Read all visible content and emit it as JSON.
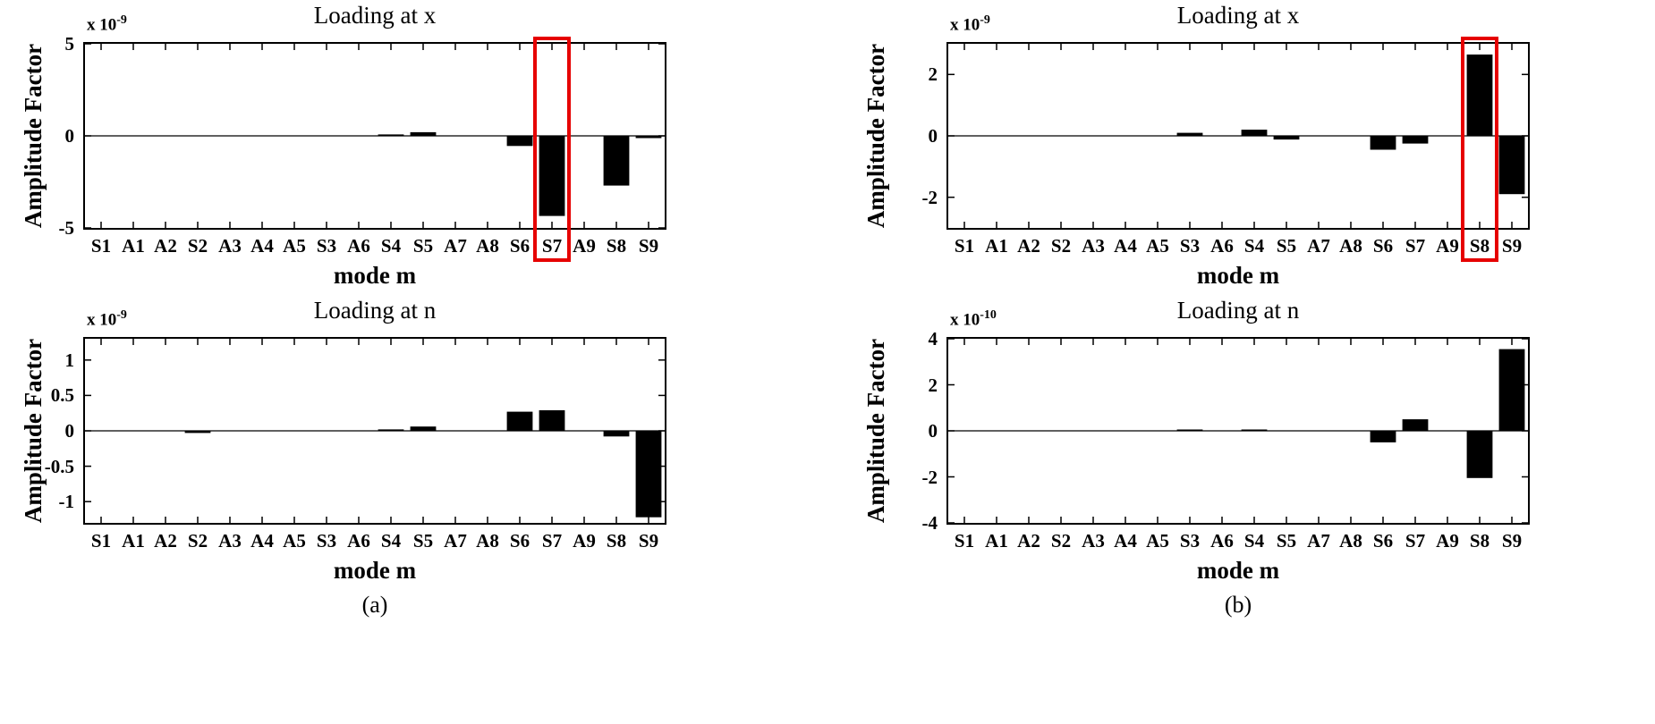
{
  "panel_labels": {
    "a": "(a)",
    "b": "(b)"
  },
  "categories": [
    "S1",
    "A1",
    "A2",
    "S2",
    "A3",
    "A4",
    "A5",
    "S3",
    "A6",
    "S4",
    "S5",
    "A7",
    "A8",
    "S6",
    "S7",
    "A9",
    "S8",
    "S9"
  ],
  "chart_data": [
    {
      "type": "bar",
      "title": "Loading at x",
      "xlabel": "mode m",
      "ylabel": "Amplitude Factor",
      "scale_base": "x 10",
      "scale_exp": "-9",
      "ylim": [
        -5,
        5
      ],
      "yticks": [
        -5,
        0,
        5
      ],
      "values": [
        0,
        0,
        0,
        0,
        0,
        0,
        0,
        0,
        0,
        0.08,
        0.2,
        0,
        0,
        -0.55,
        -4.35,
        0,
        -2.7,
        -0.12
      ],
      "highlight": "S7",
      "highlight_color": "#e60000",
      "bar_color": "#000000",
      "legend": null,
      "grid": false
    },
    {
      "type": "bar",
      "title": "Loading at x",
      "xlabel": "mode m",
      "ylabel": "Amplitude Factor",
      "scale_base": "x 10",
      "scale_exp": "-9",
      "ylim": [
        -3,
        3
      ],
      "yticks": [
        -2,
        0,
        2
      ],
      "values": [
        0,
        0,
        0,
        0,
        0,
        0,
        0,
        0.1,
        0,
        0.2,
        -0.12,
        0,
        0,
        -0.45,
        -0.25,
        0,
        2.65,
        -1.9
      ],
      "highlight": "S8",
      "highlight_color": "#e60000",
      "bar_color": "#000000",
      "legend": null,
      "grid": false
    },
    {
      "type": "bar",
      "title": "Loading at n",
      "xlabel": "mode m",
      "ylabel": "Amplitude Factor",
      "scale_base": "x 10",
      "scale_exp": "-9",
      "ylim": [
        -1.3,
        1.3
      ],
      "yticks": [
        -1,
        -0.5,
        0,
        0.5,
        1
      ],
      "values": [
        0,
        0,
        0,
        -0.03,
        0,
        0,
        0,
        0,
        0,
        0.02,
        0.06,
        0,
        0,
        0.27,
        0.29,
        0,
        -0.08,
        -1.22
      ],
      "highlight": null,
      "highlight_color": "#e60000",
      "bar_color": "#000000",
      "legend": null,
      "grid": false
    },
    {
      "type": "bar",
      "title": "Loading at n",
      "xlabel": "mode m",
      "ylabel": "Amplitude Factor",
      "scale_base": "x 10",
      "scale_exp": "-10",
      "ylim": [
        -4,
        4
      ],
      "yticks": [
        -4,
        -2,
        0,
        2,
        4
      ],
      "values": [
        0,
        0,
        0,
        0,
        0,
        0,
        0,
        0.06,
        0,
        0.06,
        0,
        0,
        0,
        -0.5,
        0.5,
        0,
        -2.05,
        3.55
      ],
      "highlight": null,
      "highlight_color": "#e60000",
      "bar_color": "#000000",
      "legend": null,
      "grid": false
    }
  ]
}
